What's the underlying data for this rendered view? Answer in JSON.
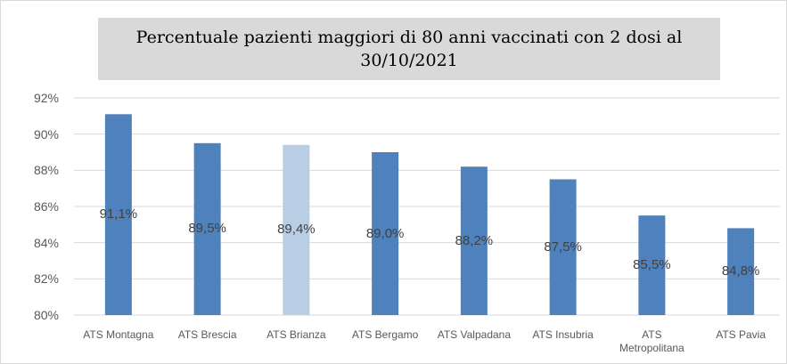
{
  "chart_data": {
    "type": "bar",
    "title": "Percentuale pazienti maggiori di 80 anni vaccinati con 2 dosi al 30/10/2021",
    "categories": [
      "ATS Montagna",
      "ATS Brescia",
      "ATS Brianza",
      "ATS Bergamo",
      "ATS Valpadana",
      "ATS Insubria",
      "ATS Metropolitana",
      "ATS Pavia"
    ],
    "values": [
      91.1,
      89.5,
      89.4,
      89.0,
      88.2,
      87.5,
      85.5,
      84.8
    ],
    "value_labels": [
      "91,1%",
      "89,5%",
      "89,4%",
      "89,0%",
      "88,2%",
      "87,5%",
      "85,5%",
      "84,8%"
    ],
    "colors": [
      "#4f81bd",
      "#4f81bd",
      "#b9cde5",
      "#4f81bd",
      "#4f81bd",
      "#4f81bd",
      "#4f81bd",
      "#4f81bd"
    ],
    "ylim": [
      80,
      92
    ],
    "yticks": [
      {
        "value": 80,
        "label": "80%"
      },
      {
        "value": 82,
        "label": "82%"
      },
      {
        "value": 84,
        "label": "84%"
      },
      {
        "value": 86,
        "label": "86%"
      },
      {
        "value": 88,
        "label": "88%"
      },
      {
        "value": 90,
        "label": "90%"
      },
      {
        "value": 92,
        "label": "92%"
      }
    ],
    "grid": true
  }
}
